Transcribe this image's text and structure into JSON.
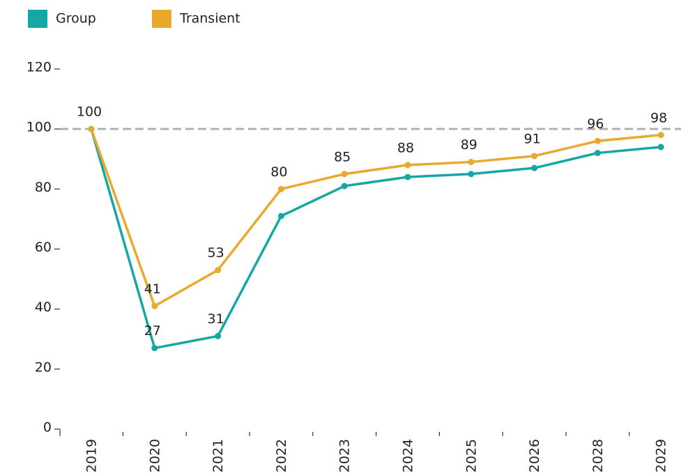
{
  "chart_data": {
    "type": "line",
    "categories": [
      "2019",
      "2020",
      "2021",
      "2022",
      "2023",
      "2024",
      "2025",
      "2026",
      "2028",
      "2029"
    ],
    "series": [
      {
        "name": "Group",
        "color": "#14a8a4",
        "values": [
          100,
          27,
          31,
          71,
          81,
          84,
          85,
          87,
          92,
          94
        ],
        "value_labels": [
          null,
          "27",
          "31",
          null,
          null,
          null,
          null,
          null,
          null,
          null
        ]
      },
      {
        "name": "Transient",
        "color": "#e8a92c",
        "values": [
          100,
          41,
          53,
          80,
          85,
          88,
          89,
          91,
          96,
          98
        ],
        "value_labels": [
          "100",
          "41",
          "53",
          "80",
          "85",
          "88",
          "89",
          "91",
          "96",
          "98"
        ]
      }
    ],
    "ylim": [
      0,
      120
    ],
    "yticks": [
      0,
      20,
      40,
      60,
      80,
      100,
      120
    ],
    "reference_line": 100,
    "reference_color": "#b0b0b0",
    "legend": "top-left"
  }
}
